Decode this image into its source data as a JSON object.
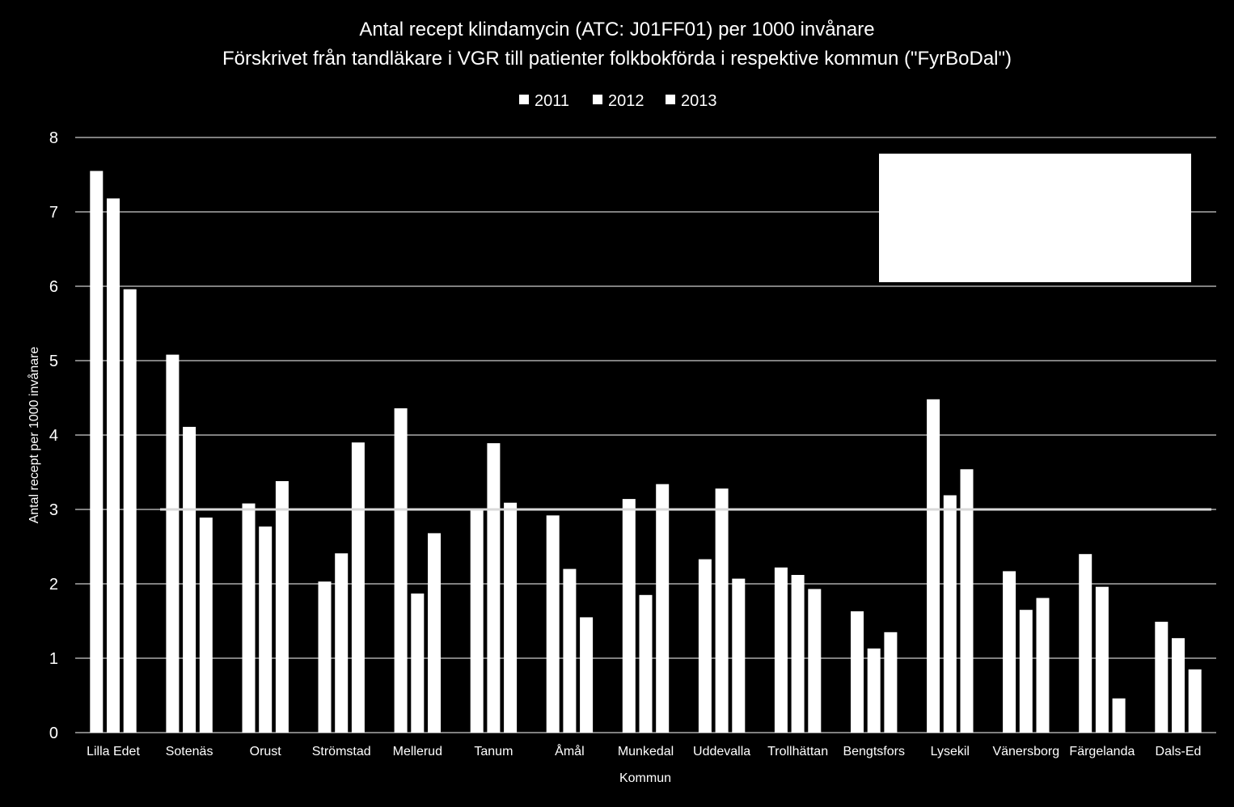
{
  "chart_data": {
    "type": "bar",
    "title": "Antal recept klindamycin (ATC: J01FF01) per 1000 invånare",
    "subtitle": "Förskrivet från tandläkare i VGR till patienter folkbokförda i respektive kommun (\"FyrBoDal\")",
    "xlabel": "Kommun",
    "ylabel": "Antal recept  per 1000 invånare",
    "ylim": [
      0,
      8
    ],
    "yticks": [
      "0",
      "1",
      "2",
      "3",
      "4",
      "5",
      "6",
      "7",
      "8"
    ],
    "grid": true,
    "legend_position": "top",
    "reference_line": 3,
    "categories": [
      "Lilla Edet",
      "Sotenäs",
      "Orust",
      "Strömstad",
      "Mellerud",
      "Tanum",
      "Åmål",
      "Munkedal",
      "Uddevalla",
      "Trollhättan",
      "Bengtsfors",
      "Lysekil",
      "Vänersborg",
      "Färgelanda",
      "Dals-Ed"
    ],
    "series": [
      {
        "name": "2011",
        "values": [
          7.55,
          5.08,
          3.08,
          2.03,
          4.36,
          3.0,
          2.92,
          3.14,
          2.33,
          2.22,
          1.63,
          4.48,
          2.17,
          2.4,
          1.49
        ]
      },
      {
        "name": "2012",
        "values": [
          7.18,
          4.11,
          2.77,
          2.41,
          1.87,
          3.89,
          2.2,
          1.85,
          3.28,
          2.12,
          1.13,
          3.19,
          1.65,
          1.96,
          1.27
        ]
      },
      {
        "name": "2013",
        "values": [
          5.96,
          2.89,
          3.38,
          3.9,
          2.68,
          3.09,
          1.55,
          3.34,
          2.07,
          1.93,
          1.35,
          3.54,
          1.81,
          0.46,
          0.85
        ]
      }
    ]
  },
  "colors": {
    "background": "#000000",
    "bars": "#ffffff",
    "gridlines": "#ffffff",
    "reference_line": "#d9d9d9",
    "text": "#ffffff",
    "annotation_box": "#ffffff"
  }
}
